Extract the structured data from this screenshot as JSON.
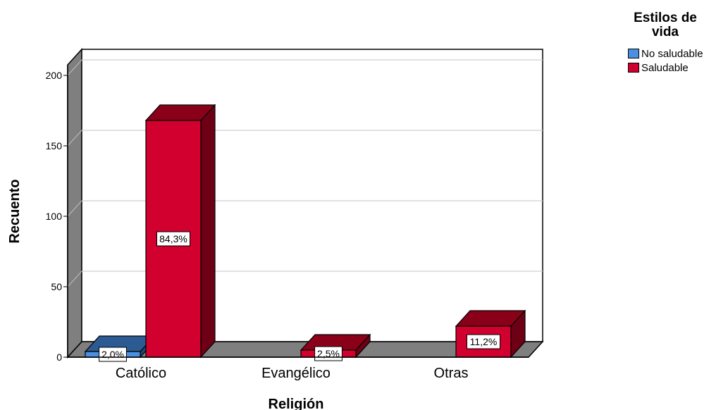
{
  "chart_data": {
    "type": "bar",
    "title": "",
    "xlabel": "Religión",
    "ylabel": "Recuento",
    "categories": [
      "Católico",
      "Evangélico",
      "Otras"
    ],
    "ylim": [
      0,
      200
    ],
    "yticks": [
      0,
      50,
      100,
      150,
      200
    ],
    "grid": true,
    "three_d": true,
    "legend_position": "top-right",
    "legend": {
      "title": [
        "Estilos de",
        "vida"
      ],
      "items": [
        "No saludable",
        "Saludable"
      ]
    },
    "series": [
      {
        "name": "No saludable",
        "color": "#4a90e2",
        "values": [
          4,
          0,
          0
        ],
        "labels": [
          "2,0%",
          "",
          ""
        ]
      },
      {
        "name": "Saludable",
        "color": "#d1002f",
        "values": [
          168,
          5,
          22
        ],
        "labels": [
          "84,3%",
          "2,5%",
          "11,2%"
        ]
      }
    ]
  }
}
